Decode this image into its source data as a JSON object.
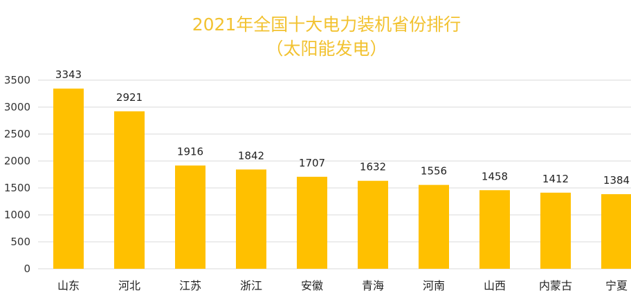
{
  "chart_data": {
    "type": "bar",
    "title": "2021年全国十大电力装机省份排行",
    "subtitle": "（太阳能发电）",
    "categories": [
      "山东",
      "河北",
      "江苏",
      "浙江",
      "安徽",
      "青海",
      "河南",
      "山西",
      "内蒙古",
      "宁夏"
    ],
    "values": [
      3343,
      2921,
      1916,
      1842,
      1707,
      1632,
      1556,
      1458,
      1412,
      1384
    ],
    "data_labels": [
      "3343",
      "2921",
      "1916",
      "1842",
      "1707",
      "1632",
      "1556",
      "1458",
      "1412",
      "1384"
    ],
    "y_ticks": [
      0,
      500,
      1000,
      1500,
      2000,
      2500,
      3000,
      3500
    ],
    "y_tick_labels": [
      "0",
      "500",
      "1000",
      "1500",
      "2000",
      "2500",
      "3000",
      "3500"
    ],
    "ylim": [
      0,
      3500
    ],
    "grid": true,
    "legend": "none",
    "bar_color": "#FFC000",
    "title_color": "#F2C230"
  }
}
